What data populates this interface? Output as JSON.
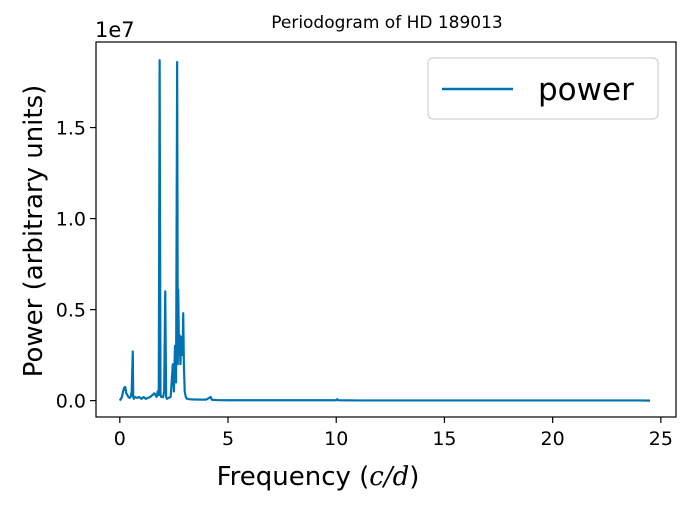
{
  "chart_data": {
    "type": "line",
    "title": "Periodogram of HD 189013",
    "xlabel_prefix": "Frequency (",
    "xlabel_unit": "c/d",
    "xlabel_suffix": ")",
    "ylabel": "Power (arbitrary units)",
    "y_offset_label": "1e7",
    "xlim": [
      -1.1,
      25.7
    ],
    "ylim": [
      -0.09,
      1.97
    ],
    "y_scale_factor": 10000000,
    "x_ticks": [
      0,
      5,
      10,
      15,
      20,
      25
    ],
    "x_tick_labels": [
      "0",
      "5",
      "10",
      "15",
      "20",
      "25"
    ],
    "y_ticks": [
      0.0,
      0.5,
      1.0,
      1.5
    ],
    "y_tick_labels": [
      "0.0",
      "0.5",
      "1.0",
      "1.5"
    ],
    "grid": false,
    "legend_position": "top-right",
    "series": [
      {
        "name": "power",
        "color": "#0072b2",
        "x": [
          0.0,
          0.05,
          0.1,
          0.15,
          0.2,
          0.25,
          0.3,
          0.35,
          0.4,
          0.45,
          0.5,
          0.55,
          0.6,
          0.62,
          0.65,
          0.7,
          0.8,
          0.9,
          1.0,
          1.1,
          1.2,
          1.3,
          1.4,
          1.5,
          1.6,
          1.7,
          1.75,
          1.8,
          1.84,
          1.88,
          1.92,
          2.0,
          2.05,
          2.1,
          2.14,
          2.18,
          2.25,
          2.35,
          2.45,
          2.5,
          2.55,
          2.6,
          2.65,
          2.68,
          2.7,
          2.73,
          2.76,
          2.8,
          2.85,
          2.9,
          2.93,
          2.96,
          3.0,
          3.05,
          3.1,
          3.2,
          3.3,
          3.5,
          3.8,
          4.0,
          4.2,
          4.25,
          4.3,
          4.5,
          5.0,
          6.0,
          7.0,
          8.0,
          9.0,
          10.0,
          10.05,
          10.1,
          11.0,
          12.0,
          13.0,
          14.0,
          15.0,
          16.0,
          17.0,
          18.0,
          19.0,
          20.0,
          21.0,
          22.0,
          23.0,
          24.0,
          24.5
        ],
        "y": [
          0.0,
          0.01,
          0.02,
          0.05,
          0.07,
          0.075,
          0.04,
          0.03,
          0.02,
          0.015,
          0.02,
          0.05,
          0.27,
          0.02,
          0.01,
          0.02,
          0.015,
          0.02,
          0.01,
          0.02,
          0.01,
          0.015,
          0.02,
          0.03,
          0.04,
          0.02,
          0.05,
          0.03,
          1.87,
          0.03,
          0.02,
          0.02,
          0.05,
          0.6,
          0.02,
          0.01,
          0.015,
          0.02,
          0.2,
          0.05,
          0.3,
          0.1,
          1.86,
          0.2,
          0.61,
          0.3,
          0.36,
          0.2,
          0.35,
          0.25,
          0.48,
          0.2,
          0.05,
          0.02,
          0.01,
          0.008,
          0.007,
          0.006,
          0.005,
          0.006,
          0.02,
          0.005,
          0.004,
          0.003,
          0.002,
          0.002,
          0.002,
          0.002,
          0.002,
          0.002,
          0.008,
          0.002,
          0.001,
          0.001,
          0.001,
          0.001,
          0.001,
          0.001,
          0.001,
          0.001,
          0.001,
          0.001,
          0.001,
          0.001,
          0.001,
          0.001,
          0.0
        ]
      }
    ]
  }
}
